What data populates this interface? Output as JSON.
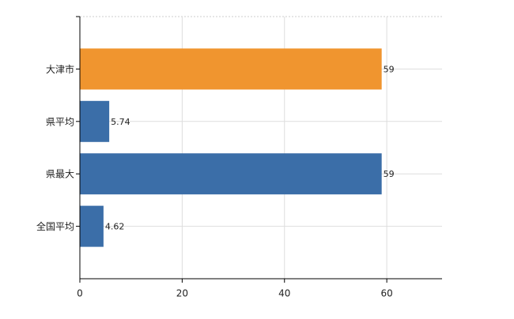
{
  "chart_data": {
    "type": "hbar",
    "categories": [
      "大津市",
      "県平均",
      "県最大",
      "全国平均"
    ],
    "values": [
      59,
      5.74,
      59,
      4.62
    ],
    "colors": [
      "#f0952f",
      "#3b6ea8",
      "#3b6ea8",
      "#3b6ea8"
    ],
    "xlim": [
      0,
      70.8
    ],
    "xticks": [
      0,
      20,
      40,
      60
    ],
    "grid": true
  }
}
